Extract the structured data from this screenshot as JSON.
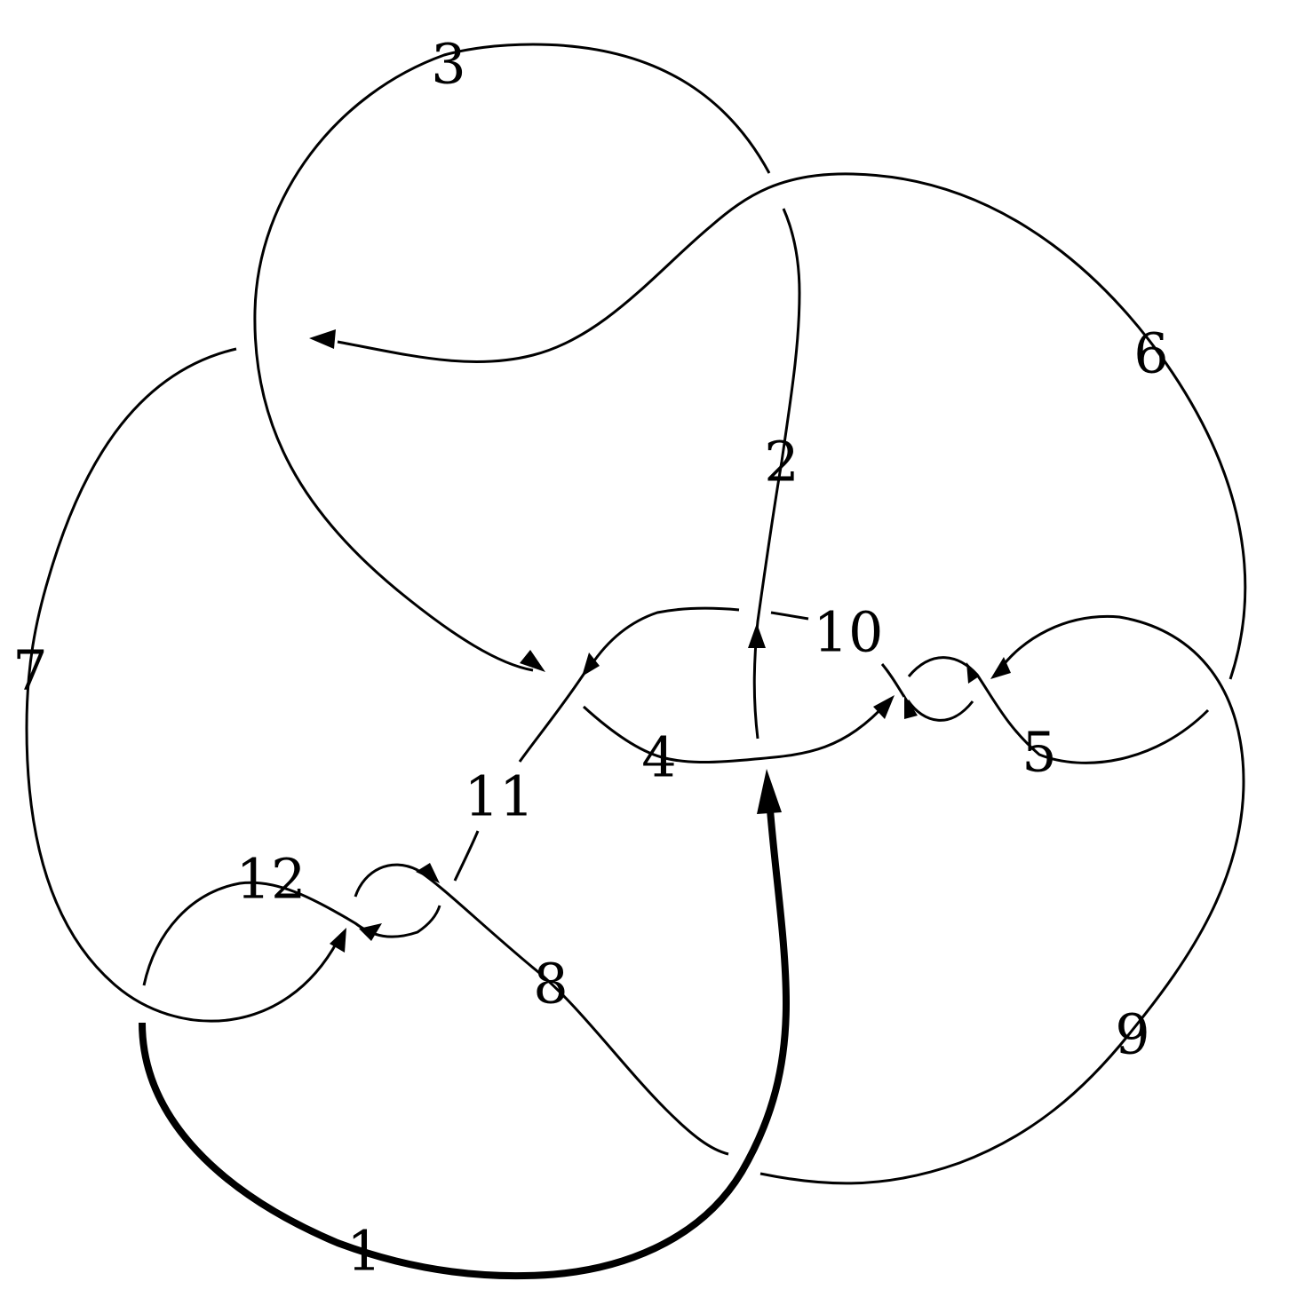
{
  "diagram": {
    "labels": {
      "arc1": "1",
      "arc2": "2",
      "arc3": "3",
      "arc4": "4",
      "arc5": "5",
      "arc6": "6",
      "arc7": "7",
      "arc8": "8",
      "arc9": "9",
      "arc10": "10",
      "arc11": "11",
      "arc12": "12"
    },
    "colors": {
      "stroke": "#000000",
      "background": "#ffffff"
    },
    "highlighted_arc": "1"
  }
}
